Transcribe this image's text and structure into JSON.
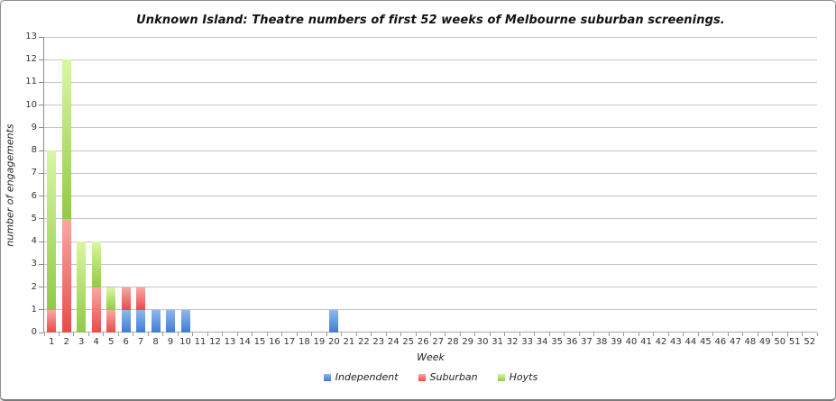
{
  "chart_data": {
    "type": "bar",
    "stacked": true,
    "title": "Unknown Island: Theatre numbers of first 52 weeks of Melbourne suburban screenings.",
    "xlabel": "Week",
    "ylabel": "number of engagements",
    "ylim": [
      0,
      13
    ],
    "ytick_step": 1,
    "yticks": [
      0,
      1,
      2,
      3,
      4,
      5,
      6,
      7,
      8,
      9,
      10,
      11,
      12,
      13
    ],
    "categories": [
      1,
      2,
      3,
      4,
      5,
      6,
      7,
      8,
      9,
      10,
      11,
      12,
      13,
      14,
      15,
      16,
      17,
      18,
      19,
      20,
      21,
      22,
      23,
      24,
      25,
      26,
      27,
      28,
      29,
      30,
      31,
      32,
      33,
      34,
      35,
      36,
      37,
      38,
      39,
      40,
      41,
      42,
      43,
      44,
      45,
      46,
      47,
      48,
      49,
      50,
      51,
      52
    ],
    "grid": "horizontal",
    "legend_position": "bottom",
    "series": [
      {
        "name": "Independent",
        "color_top": "#8cb8ee",
        "color_bottom": "#3f7bd5",
        "values": [
          0,
          0,
          0,
          0,
          0,
          1,
          1,
          1,
          1,
          1,
          0,
          0,
          0,
          0,
          0,
          0,
          0,
          0,
          0,
          1,
          0,
          0,
          0,
          0,
          0,
          0,
          0,
          0,
          0,
          0,
          0,
          0,
          0,
          0,
          0,
          0,
          0,
          0,
          0,
          0,
          0,
          0,
          0,
          0,
          0,
          0,
          0,
          0,
          0,
          0,
          0,
          0
        ]
      },
      {
        "name": "Suburban",
        "color_top": "#f9a8a5",
        "color_bottom": "#e94b48",
        "values": [
          1,
          5,
          0,
          2,
          1,
          1,
          1,
          0,
          0,
          0,
          0,
          0,
          0,
          0,
          0,
          0,
          0,
          0,
          0,
          0,
          0,
          0,
          0,
          0,
          0,
          0,
          0,
          0,
          0,
          0,
          0,
          0,
          0,
          0,
          0,
          0,
          0,
          0,
          0,
          0,
          0,
          0,
          0,
          0,
          0,
          0,
          0,
          0,
          0,
          0,
          0,
          0
        ]
      },
      {
        "name": "Hoyts",
        "color_top": "#d9f7a3",
        "color_bottom": "#92c947",
        "values": [
          7,
          7,
          4,
          2,
          1,
          0,
          0,
          0,
          0,
          0,
          0,
          0,
          0,
          0,
          0,
          0,
          0,
          0,
          0,
          0,
          0,
          0,
          0,
          0,
          0,
          0,
          0,
          0,
          0,
          0,
          0,
          0,
          0,
          0,
          0,
          0,
          0,
          0,
          0,
          0,
          0,
          0,
          0,
          0,
          0,
          0,
          0,
          0,
          0,
          0,
          0,
          0
        ]
      }
    ]
  }
}
